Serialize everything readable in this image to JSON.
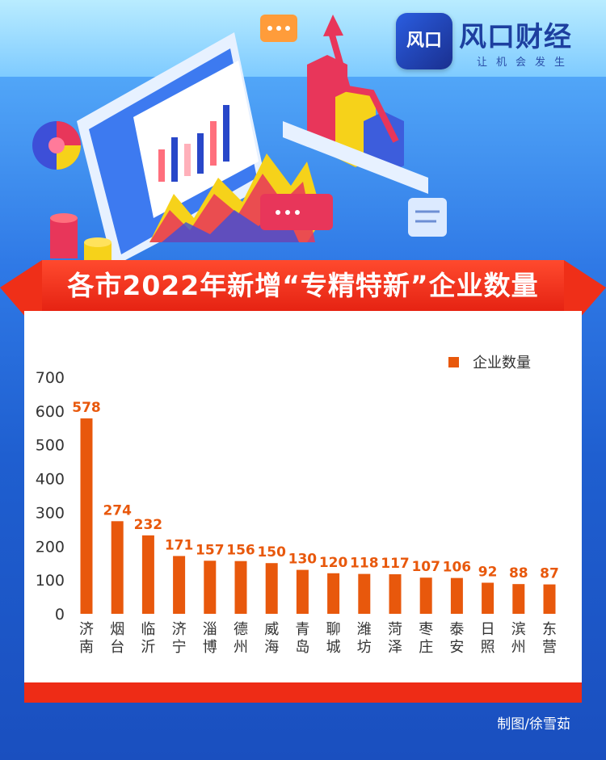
{
  "brand": {
    "logo_text": "风口",
    "name": "风口财经",
    "slogan": "让机会发生"
  },
  "title": "各市2022年新增“专精特新”企业数量",
  "credit": "制图/徐雪茹",
  "colors": {
    "bar": "#e8580c",
    "label": "#e8580c",
    "banner": "#ef2f18",
    "background": "#2f79e6"
  },
  "chart_data": {
    "type": "bar",
    "legend": "企业数量",
    "legend_position": "top-right",
    "ylim": [
      0,
      700
    ],
    "yticks": [
      0,
      100,
      200,
      300,
      400,
      500,
      600,
      700
    ],
    "grid": false,
    "categories": [
      "济南",
      "烟台",
      "临沂",
      "济宁",
      "淄博",
      "德州",
      "威海",
      "青岛",
      "聊城",
      "潍坊",
      "菏泽",
      "枣庄",
      "泰安",
      "日照",
      "滨州",
      "东营"
    ],
    "series": [
      {
        "name": "企业数量",
        "values": [
          578,
          274,
          232,
          171,
          157,
          156,
          150,
          130,
          120,
          118,
          117,
          107,
          106,
          92,
          88,
          87
        ]
      }
    ]
  }
}
